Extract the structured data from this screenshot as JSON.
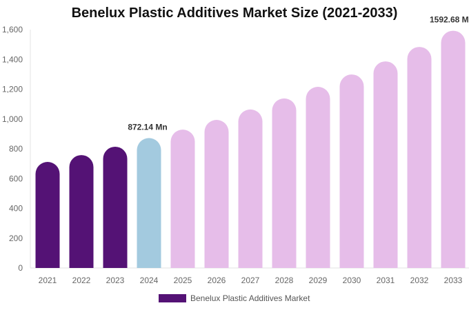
{
  "chart_data": {
    "type": "bar",
    "title": "Benelux Plastic Additives Market Size (2021-2033)",
    "categories": [
      "2021",
      "2022",
      "2023",
      "2024",
      "2025",
      "2026",
      "2027",
      "2028",
      "2029",
      "2030",
      "2031",
      "2032",
      "2033"
    ],
    "series": [
      {
        "name": "Benelux Plastic Additives Market",
        "values": [
          712,
          758,
          814,
          872.14,
          929,
          994,
          1064,
          1138,
          1216,
          1299,
          1387,
          1484,
          1592.68
        ]
      }
    ],
    "data_labels": [
      {
        "category": "2024",
        "text": "872.14 Mn"
      },
      {
        "category": "2033",
        "text": "1592.68 Mn"
      }
    ],
    "ylim": [
      0,
      1600
    ],
    "yticks": [
      "0",
      "200",
      "400",
      "600",
      "800",
      "1,000",
      "1,200",
      "1,400",
      "1,600"
    ],
    "grid": false,
    "legend": "bottom",
    "colors": {
      "historical": "#541275",
      "current": "#a3cadf",
      "forecast": "#e6bde9"
    }
  }
}
